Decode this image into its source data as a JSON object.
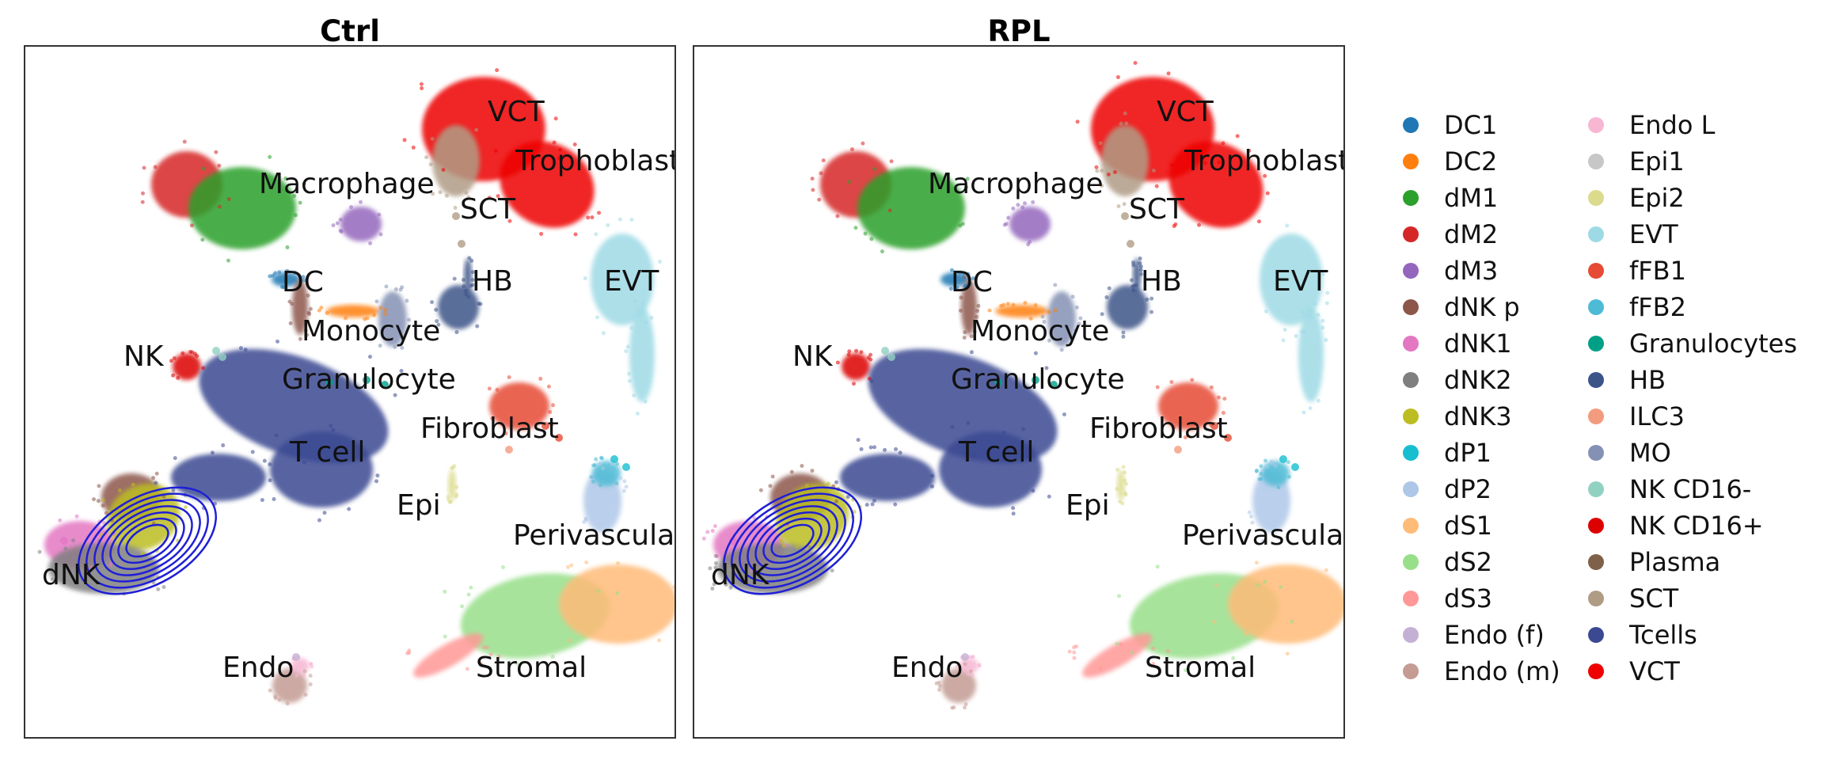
{
  "chart_data": [
    {
      "type": "scatter",
      "title": "Ctrl",
      "xlabel": "",
      "ylabel": "",
      "grid": false,
      "axes_visible": false,
      "density_contour": {
        "group": "dNK",
        "color": "#1f1fd6"
      },
      "cluster_labels": [
        "VCT",
        "Trophoblast",
        "Macrophage",
        "SCT",
        "DC",
        "HB",
        "EVT",
        "Monocyte",
        "NK",
        "Granulocyte",
        "Fibroblast",
        "T cell",
        "Epi",
        "Perivascular",
        "dNK",
        "Endo",
        "Stromal"
      ]
    },
    {
      "type": "scatter",
      "title": "RPL",
      "xlabel": "",
      "ylabel": "",
      "grid": false,
      "axes_visible": false,
      "density_contour": {
        "group": "dNK",
        "color": "#1f1fd6"
      },
      "cluster_labels": [
        "VCT",
        "Trophoblast",
        "Macrophage",
        "SCT",
        "DC",
        "HB",
        "EVT",
        "Monocyte",
        "NK",
        "Granulocyte",
        "Fibroblast",
        "T cell",
        "Epi",
        "Perivascular",
        "dNK",
        "Endo",
        "Stromal"
      ]
    }
  ],
  "legend": {
    "placement": "right",
    "columns": 2,
    "items": [
      {
        "label": "DC1",
        "color": "#1f77b4"
      },
      {
        "label": "DC2",
        "color": "#ff7f0e"
      },
      {
        "label": "dM1",
        "color": "#2ca02c"
      },
      {
        "label": "dM2",
        "color": "#d62728"
      },
      {
        "label": "dM3",
        "color": "#9467bd"
      },
      {
        "label": "dNK p",
        "color": "#8c564b"
      },
      {
        "label": "dNK1",
        "color": "#e377c2"
      },
      {
        "label": "dNK2",
        "color": "#7f7f7f"
      },
      {
        "label": "dNK3",
        "color": "#bcbd22"
      },
      {
        "label": "dP1",
        "color": "#17becf"
      },
      {
        "label": "dP2",
        "color": "#aec7e8"
      },
      {
        "label": "dS1",
        "color": "#ffbb78"
      },
      {
        "label": "dS2",
        "color": "#98df8a"
      },
      {
        "label": "dS3",
        "color": "#ff9896"
      },
      {
        "label": "Endo (f)",
        "color": "#c5b0d5"
      },
      {
        "label": "Endo (m)",
        "color": "#c49c94"
      },
      {
        "label": "Endo L",
        "color": "#f7b6d2"
      },
      {
        "label": "Epi1",
        "color": "#c7c7c7"
      },
      {
        "label": "Epi2",
        "color": "#dbdb8d"
      },
      {
        "label": "EVT",
        "color": "#9edae5"
      },
      {
        "label": "fFB1",
        "color": "#e64b35"
      },
      {
        "label": "fFB2",
        "color": "#4dbbd5"
      },
      {
        "label": "Granulocytes",
        "color": "#00a087"
      },
      {
        "label": "HB",
        "color": "#3c5488"
      },
      {
        "label": "ILC3",
        "color": "#f39b7f"
      },
      {
        "label": "MO",
        "color": "#8491b4"
      },
      {
        "label": "NK CD16-",
        "color": "#91d1c2"
      },
      {
        "label": "NK CD16+",
        "color": "#dc0000"
      },
      {
        "label": "Plasma",
        "color": "#7e6148"
      },
      {
        "label": "SCT",
        "color": "#b09c85"
      },
      {
        "label": "Tcells",
        "color": "#3b4992"
      },
      {
        "label": "VCT",
        "color": "#ee0000"
      }
    ]
  }
}
